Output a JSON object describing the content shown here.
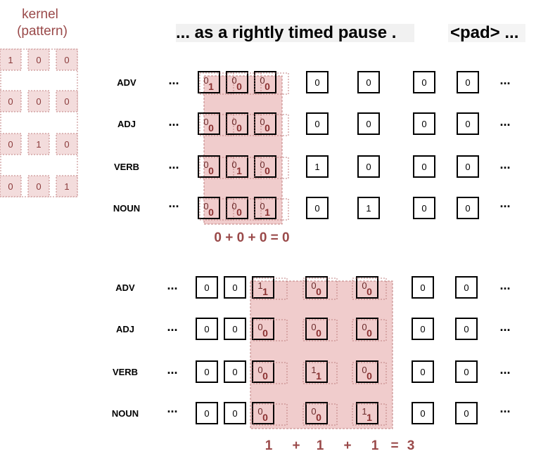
{
  "kernel": {
    "title_line1": "kernel",
    "title_line2": "(pattern)",
    "values": [
      [
        "1",
        "0",
        "0"
      ],
      [
        "0",
        "0",
        "0"
      ],
      [
        "0",
        "1",
        "0"
      ],
      [
        "0",
        "0",
        "1"
      ]
    ]
  },
  "sentence": {
    "text": "... as a rightly timed pause .",
    "pad_text": "<pad> ..."
  },
  "row_labels": [
    "ADV",
    "ADJ",
    "VERB",
    "NOUN"
  ],
  "ellipsis": "...",
  "top_grid": {
    "values": [
      [
        "0",
        "0",
        "0",
        "0",
        "0",
        "0",
        "0"
      ],
      [
        "0",
        "0",
        "0",
        "0",
        "0",
        "0",
        "0"
      ],
      [
        "0",
        "0",
        "0",
        "1",
        "0",
        "0",
        "0"
      ],
      [
        "0",
        "0",
        "0",
        "0",
        "1",
        "0",
        "0"
      ]
    ],
    "highlight_cols": [
      0,
      1,
      2
    ],
    "highlight_values": [
      [
        "1",
        "0",
        "0"
      ],
      [
        "0",
        "0",
        "0"
      ],
      [
        "0",
        "1",
        "0"
      ],
      [
        "0",
        "0",
        "1"
      ]
    ],
    "sum_text": "0 + 0 + 0 = 0"
  },
  "bottom_grid": {
    "values": [
      [
        "0",
        "0",
        "1",
        "0",
        "0",
        "0",
        "0"
      ],
      [
        "0",
        "0",
        "0",
        "0",
        "0",
        "0",
        "0"
      ],
      [
        "0",
        "0",
        "0",
        "1",
        "0",
        "0",
        "0"
      ],
      [
        "0",
        "0",
        "0",
        "0",
        "1",
        "0",
        "0"
      ]
    ],
    "highlight_cols": [
      2,
      3,
      4
    ],
    "highlight_values": [
      [
        "1",
        "0",
        "0"
      ],
      [
        "0",
        "0",
        "0"
      ],
      [
        "0",
        "1",
        "0"
      ],
      [
        "0",
        "0",
        "1"
      ]
    ],
    "sum_text": [
      "1",
      "+",
      "1",
      "+",
      "1",
      "=",
      "3"
    ]
  },
  "colors": {
    "highlight_fill": "#f0cccc",
    "highlight_stroke": "#c08080",
    "sum_color": "#9a4a4a",
    "cell_border": "#000000"
  }
}
